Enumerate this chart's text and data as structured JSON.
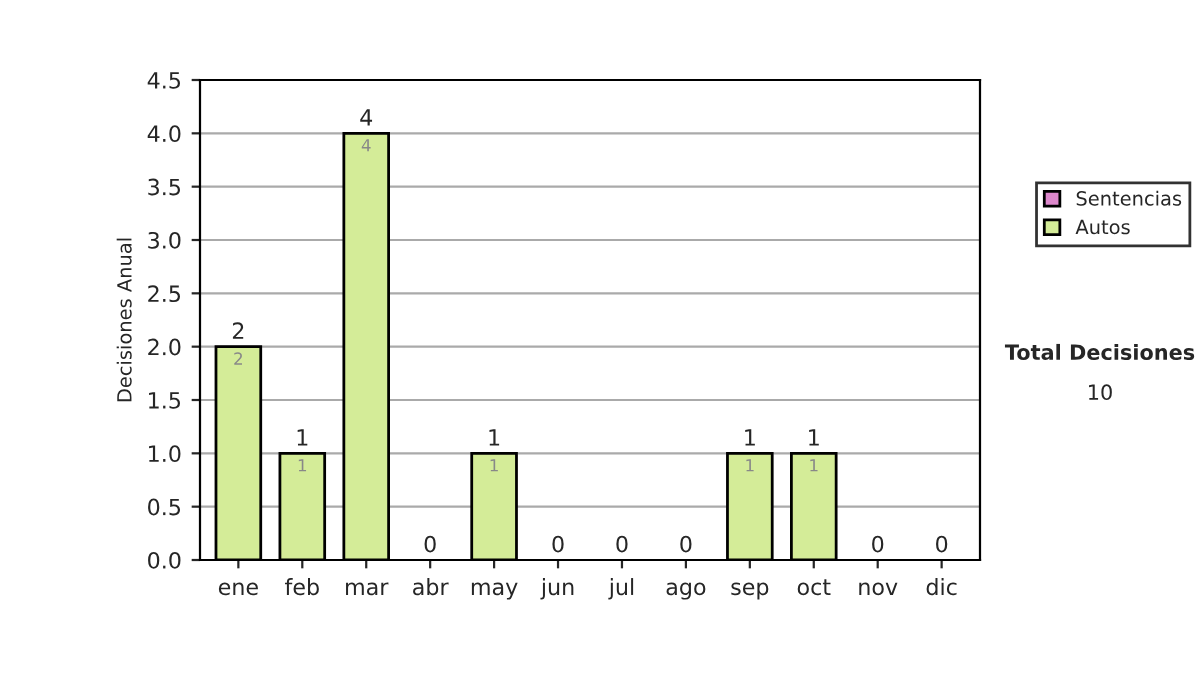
{
  "chart_data": {
    "type": "bar",
    "stacked": true,
    "ylabel": "Decisiones Anual",
    "categories": [
      "ene",
      "feb",
      "mar",
      "abr",
      "may",
      "jun",
      "jul",
      "ago",
      "sep",
      "oct",
      "nov",
      "dic"
    ],
    "series": [
      {
        "name": "Sentencias",
        "color": "#dd88cc",
        "values": [
          0,
          0,
          0,
          0,
          0,
          0,
          0,
          0,
          0,
          0,
          0,
          0
        ]
      },
      {
        "name": "Autos",
        "color": "#d4ec98",
        "values": [
          2,
          1,
          4,
          0,
          1,
          0,
          0,
          0,
          1,
          1,
          0,
          0
        ],
        "value_labels": [
          "2",
          "1",
          "4",
          null,
          "1",
          null,
          null,
          null,
          "1",
          "1",
          null,
          null
        ]
      }
    ],
    "totals": [
      "2",
      "1",
      "4",
      "0",
      "1",
      "0",
      "0",
      "0",
      "1",
      "1",
      "0",
      "0"
    ],
    "ylim": [
      0,
      4.5
    ],
    "yticks": [
      {
        "value": 0,
        "label": "0.0"
      },
      {
        "value": 0.5,
        "label": "0.5"
      },
      {
        "value": 1,
        "label": "1.0"
      },
      {
        "value": 1.5,
        "label": "1.5"
      },
      {
        "value": 2,
        "label": "2.0"
      },
      {
        "value": 2.5,
        "label": "2.5"
      },
      {
        "value": 3,
        "label": "3.0"
      },
      {
        "value": 3.5,
        "label": "3.5"
      },
      {
        "value": 4,
        "label": "4.0"
      },
      {
        "value": 4.5,
        "label": "4.5"
      }
    ],
    "grid": "y",
    "legend": "right",
    "annotations": [
      "Total Decisiones",
      "10"
    ]
  }
}
